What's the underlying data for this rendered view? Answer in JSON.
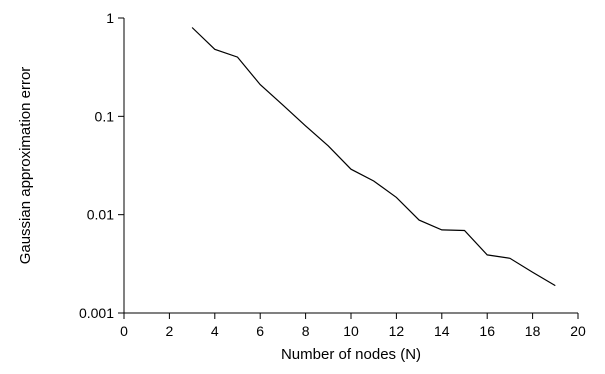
{
  "chart_data": {
    "type": "line",
    "title": "",
    "xlabel": "Number of nodes (N)",
    "ylabel": "Gaussian approximation error",
    "xlim": [
      0,
      20
    ],
    "ylim": [
      0.001,
      1
    ],
    "yscale": "log",
    "grid": false,
    "x_ticks": [
      0,
      2,
      4,
      6,
      8,
      10,
      12,
      14,
      16,
      18,
      20
    ],
    "x_tick_labels": [
      "0",
      "2",
      "4",
      "6",
      "8",
      "10",
      "12",
      "14",
      "16",
      "18",
      "20"
    ],
    "y_ticks": [
      0.001,
      0.01,
      0.1,
      1
    ],
    "y_tick_labels": [
      "0.001",
      "0.01",
      "0.1",
      "1"
    ],
    "series": [
      {
        "x": [
          3,
          4,
          5,
          6,
          7,
          8,
          9,
          10,
          11,
          12,
          13,
          14,
          15,
          16,
          17,
          18,
          19
        ],
        "y": [
          0.8,
          0.48,
          0.4,
          0.21,
          0.13,
          0.08,
          0.05,
          0.029,
          0.022,
          0.015,
          0.0088,
          0.007,
          0.0069,
          0.0039,
          0.0036,
          0.0026,
          0.0019
        ]
      }
    ],
    "line_color": "#000000"
  }
}
